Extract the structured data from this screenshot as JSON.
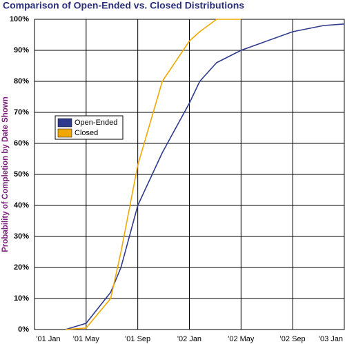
{
  "chart_data": {
    "type": "line",
    "title": "Comparison of Open-Ended vs. Closed Distributions",
    "y_label": "Probability of Completion by Date Shown",
    "x": [
      2.4,
      4,
      5.9,
      6.7,
      8,
      9.9,
      12,
      12.8,
      14.1,
      16,
      20,
      22.4,
      24
    ],
    "series": [
      {
        "name": "Open-Ended",
        "color": "#2e3a8c",
        "values": [
          0,
          2,
          12,
          20,
          40,
          57,
          73,
          80,
          86,
          90,
          96,
          98,
          98.5
        ]
      },
      {
        "name": "Closed",
        "color": "#f0a800",
        "values": [
          0,
          0.5,
          10,
          25,
          53,
          80,
          93,
          96,
          100,
          100,
          null,
          null,
          null
        ]
      }
    ],
    "xlim": [
      0,
      24
    ],
    "xticks": [
      {
        "value": 0,
        "label": "'01 Jan"
      },
      {
        "value": 4,
        "label": "'01 May"
      },
      {
        "value": 8,
        "label": "'01 Sep"
      },
      {
        "value": 12,
        "label": "'02 Jan"
      },
      {
        "value": 16,
        "label": "'02 May"
      },
      {
        "value": 20,
        "label": "'02 Sep"
      },
      {
        "value": 24,
        "label": "'03 Jan"
      }
    ],
    "ylim": [
      0,
      100
    ],
    "yticks": [
      {
        "value": 0,
        "label": "0%"
      },
      {
        "value": 10,
        "label": "10%"
      },
      {
        "value": 20,
        "label": "20%"
      },
      {
        "value": 30,
        "label": "30%"
      },
      {
        "value": 40,
        "label": "40%"
      },
      {
        "value": 50,
        "label": "50%"
      },
      {
        "value": 60,
        "label": "60%"
      },
      {
        "value": 70,
        "label": "70%"
      },
      {
        "value": 80,
        "label": "80%"
      },
      {
        "value": 90,
        "label": "90%"
      },
      {
        "value": 100,
        "label": "100%"
      }
    ],
    "grid": true
  }
}
